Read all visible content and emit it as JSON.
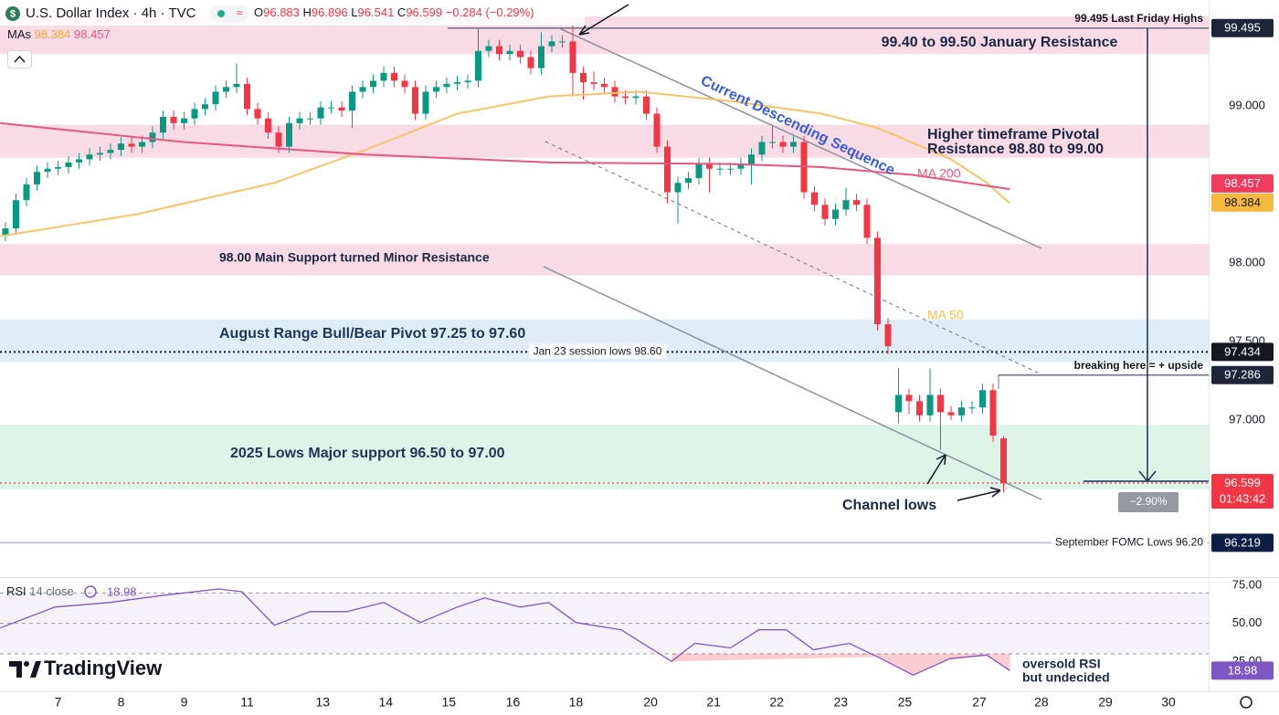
{
  "chart_data": {
    "type": "candlestick",
    "title": "U.S. Dollar Index · 4h · TVC",
    "ohlc_legend": {
      "open_label": "O",
      "open": 96.883,
      "high_label": "H",
      "high": 96.896,
      "low_label": "L",
      "low": 96.541,
      "close_label": "C",
      "close": 96.599,
      "change": "−0.284 (−0.29%)"
    },
    "ma_legend": {
      "label": "MAs",
      "values": [
        98.384,
        98.457
      ]
    },
    "up_color": "#089981",
    "down_color": "#f23645",
    "open": [
      98.18,
      98.22,
      98.4,
      98.5,
      98.58,
      98.6,
      98.61,
      98.64,
      98.66,
      98.69,
      98.7,
      98.72,
      98.76,
      98.74,
      98.77,
      98.83,
      98.93,
      98.89,
      98.92,
      98.98,
      99.01,
      99.09,
      99.12,
      99.14,
      98.98,
      98.92,
      98.83,
      98.74,
      98.89,
      98.92,
      98.92,
      98.99,
      98.99,
      98.97,
      99.09,
      99.12,
      99.16,
      99.21,
      99.16,
      99.12,
      98.95,
      99.09,
      99.12,
      99.14,
      99.15,
      99.16,
      99.35,
      99.38,
      99.33,
      99.35,
      99.31,
      99.24,
      99.38,
      99.41,
      99.41,
      99.21,
      99.15,
      99.14,
      99.12,
      99.06,
      99.05,
      99.06,
      98.95,
      98.74,
      98.45,
      98.51,
      98.54,
      98.63,
      98.6,
      98.6,
      98.6,
      98.63,
      98.69,
      98.77,
      98.77,
      98.74,
      98.77,
      98.45,
      98.37,
      98.28,
      98.34,
      98.4,
      98.37,
      98.16,
      97.61,
      97.05,
      97.16,
      97.12,
      97.03,
      97.16,
      97.05,
      97.03,
      97.08,
      97.08,
      97.19,
      96.883
    ],
    "high": [
      98.26,
      98.44,
      98.54,
      98.62,
      98.64,
      98.65,
      98.68,
      98.7,
      98.73,
      98.74,
      98.76,
      98.8,
      98.8,
      98.81,
      98.87,
      98.97,
      98.97,
      98.96,
      99.02,
      99.05,
      99.13,
      99.16,
      99.27,
      99.18,
      99.02,
      98.96,
      98.87,
      98.93,
      98.96,
      98.96,
      99.03,
      99.03,
      99.03,
      99.13,
      99.16,
      99.2,
      99.25,
      99.25,
      99.2,
      99.16,
      99.13,
      99.16,
      99.18,
      99.19,
      99.2,
      99.49,
      99.42,
      99.42,
      99.39,
      99.39,
      99.35,
      99.47,
      99.45,
      99.45,
      99.51,
      99.25,
      99.22,
      99.18,
      99.16,
      99.1,
      99.1,
      99.1,
      98.99,
      98.78,
      98.55,
      98.58,
      98.67,
      98.67,
      98.64,
      98.64,
      98.67,
      98.73,
      98.81,
      98.87,
      98.81,
      98.81,
      98.81,
      98.49,
      98.41,
      98.38,
      98.48,
      98.44,
      98.41,
      98.2,
      97.65,
      97.33,
      97.2,
      97.16,
      97.33,
      97.2,
      97.09,
      97.12,
      97.12,
      97.23,
      97.23,
      96.896
    ],
    "low": [
      98.14,
      98.18,
      98.36,
      98.46,
      98.54,
      98.56,
      98.57,
      98.6,
      98.62,
      98.65,
      98.66,
      98.68,
      98.7,
      98.7,
      98.73,
      98.79,
      98.85,
      98.85,
      98.88,
      98.94,
      98.97,
      99.05,
      99.08,
      98.94,
      98.88,
      98.79,
      98.7,
      98.7,
      98.85,
      98.88,
      98.88,
      98.95,
      98.93,
      98.86,
      99.05,
      99.08,
      99.12,
      99.12,
      99.08,
      98.91,
      98.91,
      99.05,
      99.08,
      99.1,
      99.11,
      99.12,
      99.31,
      99.29,
      99.29,
      99.27,
      99.2,
      99.2,
      99.34,
      99.37,
      99.06,
      99.04,
      99.1,
      99.08,
      99.02,
      99.01,
      99.01,
      98.91,
      98.7,
      98.38,
      98.25,
      98.47,
      98.5,
      98.45,
      98.56,
      98.56,
      98.56,
      98.5,
      98.65,
      98.73,
      98.7,
      98.7,
      98.41,
      98.33,
      98.24,
      98.24,
      98.3,
      98.33,
      98.12,
      97.57,
      97.42,
      96.98,
      97.04,
      96.99,
      96.99,
      96.81,
      97.0,
      96.99,
      97.04,
      97.04,
      96.86,
      96.541
    ],
    "close": [
      98.22,
      98.4,
      98.5,
      98.58,
      98.6,
      98.61,
      98.64,
      98.66,
      98.69,
      98.7,
      98.72,
      98.76,
      98.74,
      98.77,
      98.83,
      98.93,
      98.89,
      98.92,
      98.98,
      99.01,
      99.09,
      99.12,
      99.14,
      98.98,
      98.92,
      98.83,
      98.74,
      98.89,
      98.92,
      98.92,
      98.99,
      98.99,
      98.97,
      99.09,
      99.12,
      99.16,
      99.21,
      99.16,
      99.12,
      98.95,
      99.09,
      99.12,
      99.14,
      99.15,
      99.16,
      99.35,
      99.38,
      99.33,
      99.35,
      99.31,
      99.24,
      99.38,
      99.41,
      99.41,
      99.21,
      99.15,
      99.14,
      99.12,
      99.06,
      99.05,
      99.06,
      98.95,
      98.74,
      98.45,
      98.51,
      98.54,
      98.63,
      98.6,
      98.6,
      98.6,
      98.63,
      98.69,
      98.77,
      98.77,
      98.74,
      98.77,
      98.45,
      98.37,
      98.28,
      98.34,
      98.4,
      98.37,
      98.16,
      97.61,
      97.47,
      97.16,
      97.12,
      97.03,
      97.16,
      97.05,
      97.03,
      97.08,
      97.08,
      97.19,
      96.9,
      96.599
    ],
    "xlim": [
      -0.52,
      114.52
    ],
    "xticks": [
      {
        "value": 5,
        "label": "7"
      },
      {
        "value": 11,
        "label": "8"
      },
      {
        "value": 17,
        "label": "9"
      },
      {
        "value": 23,
        "label": "11"
      },
      {
        "value": 30.2,
        "label": "13"
      },
      {
        "value": 36.2,
        "label": "14"
      },
      {
        "value": 42.2,
        "label": "15"
      },
      {
        "value": 48.3,
        "label": "16"
      },
      {
        "value": 54.3,
        "label": "18"
      },
      {
        "value": 61.4,
        "label": "20"
      },
      {
        "value": 67.4,
        "label": "21"
      },
      {
        "value": 73.4,
        "label": "22"
      },
      {
        "value": 79.5,
        "label": "23"
      },
      {
        "value": 85.6,
        "label": "25"
      },
      {
        "value": 92.7,
        "label": "27"
      },
      {
        "value": 98.6,
        "label": "28"
      },
      {
        "value": 104.7,
        "label": "29"
      },
      {
        "value": 110.7,
        "label": "30"
      }
    ],
    "ylim": [
      96.0,
      99.674
    ],
    "yticks": [
      {
        "value": 97,
        "label": "97.000"
      },
      {
        "value": 97.5,
        "label": "97.500"
      },
      {
        "value": 98,
        "label": "98.000"
      },
      {
        "value": 99,
        "label": "99.000"
      }
    ],
    "grid": false,
    "moving_averages": [
      {
        "name": "MA 50",
        "color": "#f5c36a",
        "x": [
          -0.5,
          12.5,
          25.6,
          34.3,
          43,
          51.7,
          60.3,
          69,
          77.7,
          83,
          90,
          93.4,
          95.6
        ],
        "values": [
          98.17,
          98.31,
          98.51,
          98.72,
          98.95,
          99.06,
          99.09,
          99.03,
          98.95,
          98.86,
          98.66,
          98.51,
          98.38
        ]
      },
      {
        "name": "MA 200",
        "color": "#e4577f",
        "x": [
          -0.5,
          16.9,
          34.3,
          51.7,
          69,
          77.7,
          86.4,
          95.6
        ],
        "values": [
          98.89,
          98.77,
          98.69,
          98.64,
          98.63,
          98.61,
          98.56,
          98.47
        ]
      }
    ],
    "zones": [
      {
        "label": [
          "99.40 to 99.50 January Resistance"
        ],
        "range": [
          99.33,
          99.57
        ],
        "color": "#f8d5e1"
      },
      {
        "label": [
          "Higher timeframe Pivotal",
          "Resistance 98.80 to 99.00"
        ],
        "range": [
          98.67,
          98.88
        ],
        "color": "#f8d5e1"
      },
      {
        "label": [
          "98.00 Main Support turned Minor Resistance"
        ],
        "range": [
          97.92,
          98.12
        ],
        "color": "#f8d5e1"
      },
      {
        "label": [
          "August Range Bull/Bear Pivot 97.25 to 97.60"
        ],
        "range": [
          97.37,
          97.64
        ],
        "color": "#d9eaf5"
      },
      {
        "label": [
          "2025 Lows Major support 96.50 to 97.00"
        ],
        "range": [
          96.56,
          96.97
        ],
        "color": "#d8f2e4"
      }
    ],
    "price_tags": [
      {
        "value": 99.495,
        "color": "#1e2538",
        "text_color": "#ffffff",
        "line": "solid",
        "line_color": "#6b7280",
        "note": "99.495 Last Friday Highs"
      },
      {
        "value": 98.457,
        "color": "#f23a5c",
        "text_color": "#ffffff"
      },
      {
        "value": 98.384,
        "color": "#f5b942",
        "text_color": "#131722"
      },
      {
        "value": 97.434,
        "color": "#131722",
        "text_color": "#ffffff",
        "line": "dotted",
        "line_color": "#131722",
        "note": "Jan 23 session lows 98.60"
      },
      {
        "value": 97.286,
        "color": "#1e2538",
        "text_color": "#ffffff",
        "line": "solid",
        "line_color": "#6b7280",
        "note": "breaking here = + upside"
      },
      {
        "value": 96.599,
        "color": "#f23645",
        "text_color": "#ffffff",
        "line": "dotted",
        "line_color": "#f23645",
        "countdown": "01:43:42"
      },
      {
        "value": 96.219,
        "color": "#0d1e45",
        "text_color": "#ffffff",
        "line": "solid",
        "line_color": "#b9b2dc",
        "note": "September FOMC Lows 96.20"
      }
    ],
    "annotations": [
      "Current Descending Sequence",
      "MA 200",
      "MA 50",
      "Channel lows",
      "−2.90%"
    ],
    "rsi": {
      "title": "RSI",
      "params": "14 close",
      "value": 18.98,
      "color": "#7e57c2",
      "ylim": [
        5.4,
        79.8
      ],
      "yticks": [
        {
          "value": 25,
          "label": "25.00"
        },
        {
          "value": 50,
          "label": "50.00"
        },
        {
          "value": 75,
          "label": "75.00"
        }
      ],
      "levels": [
        70,
        50,
        30
      ],
      "x": [
        -0.5,
        4.7,
        9.9,
        15.1,
        20.3,
        22.5,
        25.6,
        29,
        32.5,
        36,
        39.5,
        43,
        45.6,
        49,
        51.7,
        54.3,
        58.6,
        63.4,
        65.6,
        69,
        71.7,
        74.3,
        76.9,
        80.3,
        83,
        86.4,
        89.9,
        93.4,
        95.6
      ],
      "values": [
        47,
        60.7,
        63.7,
        68.5,
        72.6,
        70.8,
        48.8,
        57.7,
        57.7,
        63.7,
        50.6,
        60.7,
        66.7,
        60.7,
        63.7,
        50.6,
        45.8,
        25,
        36.9,
        33.9,
        45.8,
        45.8,
        32.7,
        36.9,
        28,
        16,
        26.8,
        29.2,
        19
      ],
      "note": [
        "oversold RSI",
        "but undecided"
      ]
    },
    "brand": "TradingView"
  }
}
